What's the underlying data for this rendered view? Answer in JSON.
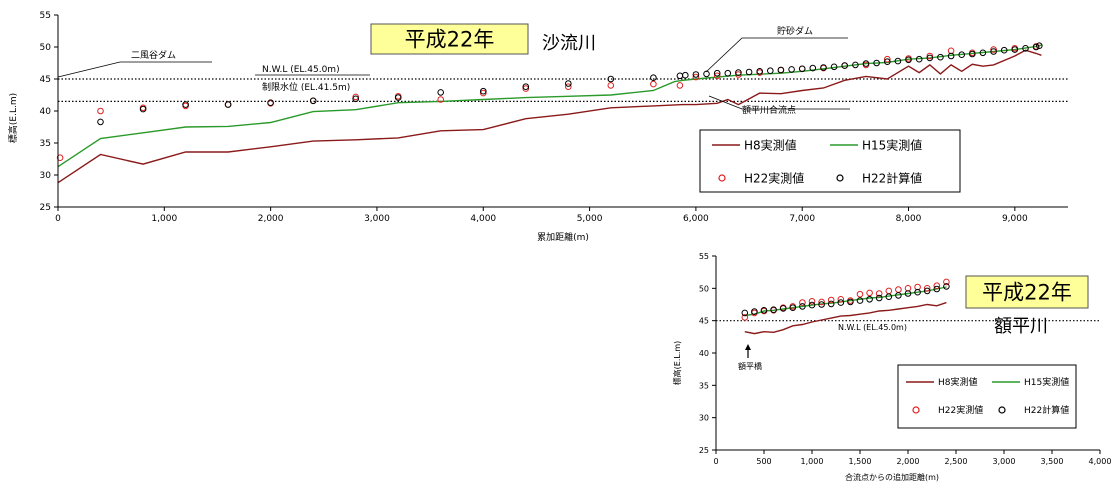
{
  "chart_data": [
    {
      "type": "line",
      "title": "平成22年",
      "river": "沙流川",
      "xlabel": "累加距離(m)",
      "ylabel": "標高(E.L.m)",
      "xlim": [
        0,
        9500
      ],
      "ylim": [
        25,
        55
      ],
      "xticks": [
        0,
        1000,
        2000,
        3000,
        4000,
        5000,
        6000,
        7000,
        8000,
        9000
      ],
      "xtick_labels": [
        "0",
        "1,000",
        "2,000",
        "3,000",
        "4,000",
        "5,000",
        "6,000",
        "7,000",
        "8,000",
        "9,000"
      ],
      "yticks": [
        25,
        30,
        35,
        40,
        45,
        50,
        55
      ],
      "ytick_labels": [
        "25",
        "30",
        "35",
        "40",
        "45",
        "50",
        "55"
      ],
      "reference_lines": [
        {
          "label": "N.W.L (EL.45.0m)",
          "y": 45.0
        },
        {
          "label": "制限水位 (EL.41.5m)",
          "y": 41.5
        }
      ],
      "annotations": [
        {
          "text": "二風谷ダム",
          "x": 0,
          "y": 45.0
        },
        {
          "text": "貯砂ダム",
          "x": 5880,
          "y": 45.5
        },
        {
          "text": "額平川合流点",
          "x": 6280,
          "y": 41.0
        }
      ],
      "legend": {
        "position": "bottom-right",
        "entries": [
          {
            "label": "H8実測値",
            "marker": "line",
            "color": "#8b1a1a"
          },
          {
            "label": "H15実測値",
            "marker": "line",
            "color": "#2a9a2a"
          },
          {
            "label": "H22実測値",
            "marker": "circle",
            "color": "#e02020"
          },
          {
            "label": "H22計算値",
            "marker": "circle",
            "color": "#000000"
          }
        ]
      },
      "series": [
        {
          "name": "H8実測値",
          "style": "line",
          "color": "#8b1a1a",
          "x": [
            0,
            400,
            800,
            1200,
            1600,
            2000,
            2400,
            2800,
            3200,
            3600,
            4000,
            4400,
            4800,
            5200,
            5600,
            5880,
            5900,
            6000,
            6200,
            6300,
            6400,
            6600,
            6800,
            7000,
            7200,
            7400,
            7600,
            7800,
            8000,
            8100,
            8200,
            8300,
            8400,
            8500,
            8600,
            8700,
            8800,
            9000,
            9100,
            9200,
            9250
          ],
          "y": [
            28.8,
            33.2,
            31.7,
            33.6,
            33.6,
            34.4,
            35.3,
            35.5,
            35.8,
            36.9,
            37.1,
            38.8,
            39.5,
            40.5,
            40.8,
            41.0,
            41.0,
            41.0,
            41.2,
            41.8,
            41.0,
            42.8,
            42.7,
            43.2,
            43.6,
            44.8,
            45.4,
            45.0,
            47.0,
            46.0,
            47.2,
            45.8,
            47.2,
            46.2,
            47.3,
            47.0,
            47.2,
            48.6,
            49.5,
            49.0,
            48.7
          ]
        },
        {
          "name": "H15実測値",
          "style": "line",
          "color": "#2a9a2a",
          "x": [
            0,
            400,
            800,
            1200,
            1600,
            2000,
            2400,
            2800,
            3200,
            3600,
            4000,
            4400,
            4800,
            5200,
            5600,
            5800,
            5880,
            6000,
            6400,
            6800,
            7000,
            7200,
            7400,
            7600,
            7800,
            8000,
            8200,
            8400,
            8600,
            8800,
            9000,
            9200,
            9250
          ],
          "y": [
            31.3,
            35.7,
            36.6,
            37.5,
            37.6,
            38.2,
            39.9,
            40.2,
            41.3,
            41.5,
            41.8,
            42.1,
            42.3,
            42.5,
            43.2,
            44.6,
            44.8,
            45.0,
            45.6,
            45.9,
            46.2,
            46.6,
            47.0,
            47.4,
            47.6,
            48.1,
            48.3,
            48.7,
            49.0,
            49.3,
            49.6,
            50.1,
            50.3
          ]
        },
        {
          "name": "H22実測値",
          "style": "marker",
          "color": "#e02020",
          "x": [
            20,
            400,
            800,
            1200,
            1600,
            2000,
            2400,
            2800,
            3200,
            3600,
            4000,
            4400,
            4800,
            5200,
            5600,
            5850,
            6000,
            6200,
            6400,
            6600,
            6800,
            7000,
            7200,
            7400,
            7600,
            7800,
            8000,
            8200,
            8400,
            8600,
            8800,
            9000,
            9200
          ],
          "y": [
            32.7,
            40.0,
            40.5,
            40.8,
            41.0,
            41.2,
            41.6,
            42.2,
            42.3,
            41.8,
            42.8,
            43.5,
            43.8,
            44.0,
            44.2,
            44.0,
            45.3,
            45.5,
            45.7,
            46.0,
            46.4,
            46.6,
            46.7,
            47.1,
            47.2,
            48.1,
            48.2,
            48.6,
            49.4,
            49.1,
            49.6,
            49.8,
            50.1
          ]
        },
        {
          "name": "H22計算値",
          "style": "marker",
          "color": "#000000",
          "x": [
            400,
            800,
            1200,
            1600,
            2000,
            2400,
            2800,
            3200,
            3600,
            4000,
            4400,
            4800,
            5200,
            5600,
            5850,
            5900,
            6000,
            6100,
            6200,
            6300,
            6400,
            6500,
            6600,
            6700,
            6800,
            6900,
            7000,
            7100,
            7200,
            7300,
            7400,
            7500,
            7600,
            7700,
            7800,
            7900,
            8000,
            8100,
            8200,
            8300,
            8400,
            8500,
            8600,
            8700,
            8800,
            8900,
            9000,
            9100,
            9200,
            9230
          ],
          "y": [
            38.3,
            40.3,
            41.0,
            41.0,
            41.3,
            41.6,
            41.9,
            42.1,
            42.9,
            43.1,
            43.8,
            44.3,
            45.0,
            45.2,
            45.5,
            45.6,
            45.7,
            45.8,
            45.9,
            45.9,
            46.0,
            46.1,
            46.2,
            46.3,
            46.4,
            46.5,
            46.6,
            46.7,
            46.8,
            46.9,
            47.1,
            47.2,
            47.4,
            47.5,
            47.7,
            47.8,
            48.0,
            48.1,
            48.3,
            48.4,
            48.6,
            48.8,
            48.9,
            49.1,
            49.3,
            49.5,
            49.6,
            49.8,
            50.0,
            50.2
          ]
        }
      ]
    },
    {
      "type": "line",
      "title": "平成22年",
      "river": "額平川",
      "xlabel": "合流点からの追加距離(m)",
      "ylabel": "標高(E.L.m)",
      "xlim": [
        0,
        4000
      ],
      "ylim": [
        25,
        55
      ],
      "xticks": [
        0,
        500,
        1000,
        1500,
        2000,
        2500,
        3000,
        3500,
        4000
      ],
      "xtick_labels": [
        "0",
        "500",
        "1,000",
        "1,500",
        "2,000",
        "2,500",
        "3,000",
        "3,500",
        "4,000"
      ],
      "yticks": [
        25,
        30,
        35,
        40,
        45,
        50,
        55
      ],
      "ytick_labels": [
        "25",
        "30",
        "35",
        "40",
        "45",
        "50",
        "55"
      ],
      "reference_lines": [
        {
          "label": "N.W.L (EL.45.0m)",
          "y": 45.0
        }
      ],
      "annotations": [
        {
          "text": "額平橋",
          "x": 340,
          "y": 41.5
        }
      ],
      "legend": {
        "position": "bottom-right",
        "entries": [
          {
            "label": "H8実測値",
            "marker": "line",
            "color": "#8b1a1a"
          },
          {
            "label": "H15実測値",
            "marker": "line",
            "color": "#2a9a2a"
          },
          {
            "label": "H22実測値",
            "marker": "circle",
            "color": "#e02020"
          },
          {
            "label": "H22計算値",
            "marker": "circle",
            "color": "#000000"
          }
        ]
      },
      "series": [
        {
          "name": "H8実測値",
          "style": "line",
          "color": "#8b1a1a",
          "x": [
            300,
            400,
            500,
            600,
            700,
            800,
            900,
            1000,
            1100,
            1200,
            1300,
            1400,
            1500,
            1600,
            1700,
            1800,
            1900,
            2000,
            2100,
            2200,
            2300,
            2400
          ],
          "y": [
            43.3,
            43.0,
            43.3,
            43.2,
            43.6,
            44.2,
            44.4,
            44.8,
            45.1,
            45.4,
            45.7,
            45.8,
            46.0,
            46.2,
            46.5,
            46.6,
            46.8,
            47.0,
            47.2,
            47.5,
            47.3,
            47.8
          ]
        },
        {
          "name": "H15実測値",
          "style": "line",
          "color": "#2a9a2a",
          "x": [
            300,
            400,
            500,
            600,
            700,
            800,
            900,
            1000,
            1100,
            1200,
            1300,
            1400,
            1500,
            1600,
            1700,
            1800,
            1900,
            2000,
            2100,
            2200,
            2300,
            2400
          ],
          "y": [
            45.8,
            46.0,
            46.5,
            46.6,
            46.8,
            47.0,
            47.2,
            47.4,
            47.6,
            47.7,
            47.9,
            48.1,
            48.3,
            48.5,
            48.6,
            48.8,
            49.0,
            49.2,
            49.4,
            49.6,
            49.9,
            50.2
          ]
        },
        {
          "name": "H22実測値",
          "style": "marker",
          "color": "#e02020",
          "x": [
            300,
            400,
            500,
            600,
            700,
            800,
            900,
            1000,
            1100,
            1200,
            1300,
            1400,
            1500,
            1600,
            1700,
            1800,
            1900,
            2000,
            2100,
            2200,
            2300,
            2400
          ],
          "y": [
            45.5,
            46.2,
            46.5,
            46.6,
            47.0,
            47.2,
            47.8,
            48.0,
            47.9,
            48.2,
            48.3,
            48.1,
            49.1,
            49.3,
            49.2,
            49.6,
            49.8,
            50.0,
            50.2,
            50.0,
            50.4,
            51.0
          ]
        },
        {
          "name": "H22計算値",
          "style": "marker",
          "color": "#000000",
          "x": [
            300,
            400,
            500,
            600,
            700,
            800,
            900,
            1000,
            1100,
            1200,
            1300,
            1400,
            1500,
            1600,
            1700,
            1800,
            1900,
            2000,
            2100,
            2200,
            2300,
            2400
          ],
          "y": [
            46.2,
            46.4,
            46.6,
            46.7,
            46.9,
            47.0,
            47.2,
            47.4,
            47.5,
            47.6,
            47.8,
            47.9,
            48.1,
            48.3,
            48.5,
            48.7,
            48.9,
            49.2,
            49.4,
            49.6,
            49.9,
            50.3
          ]
        }
      ]
    }
  ]
}
